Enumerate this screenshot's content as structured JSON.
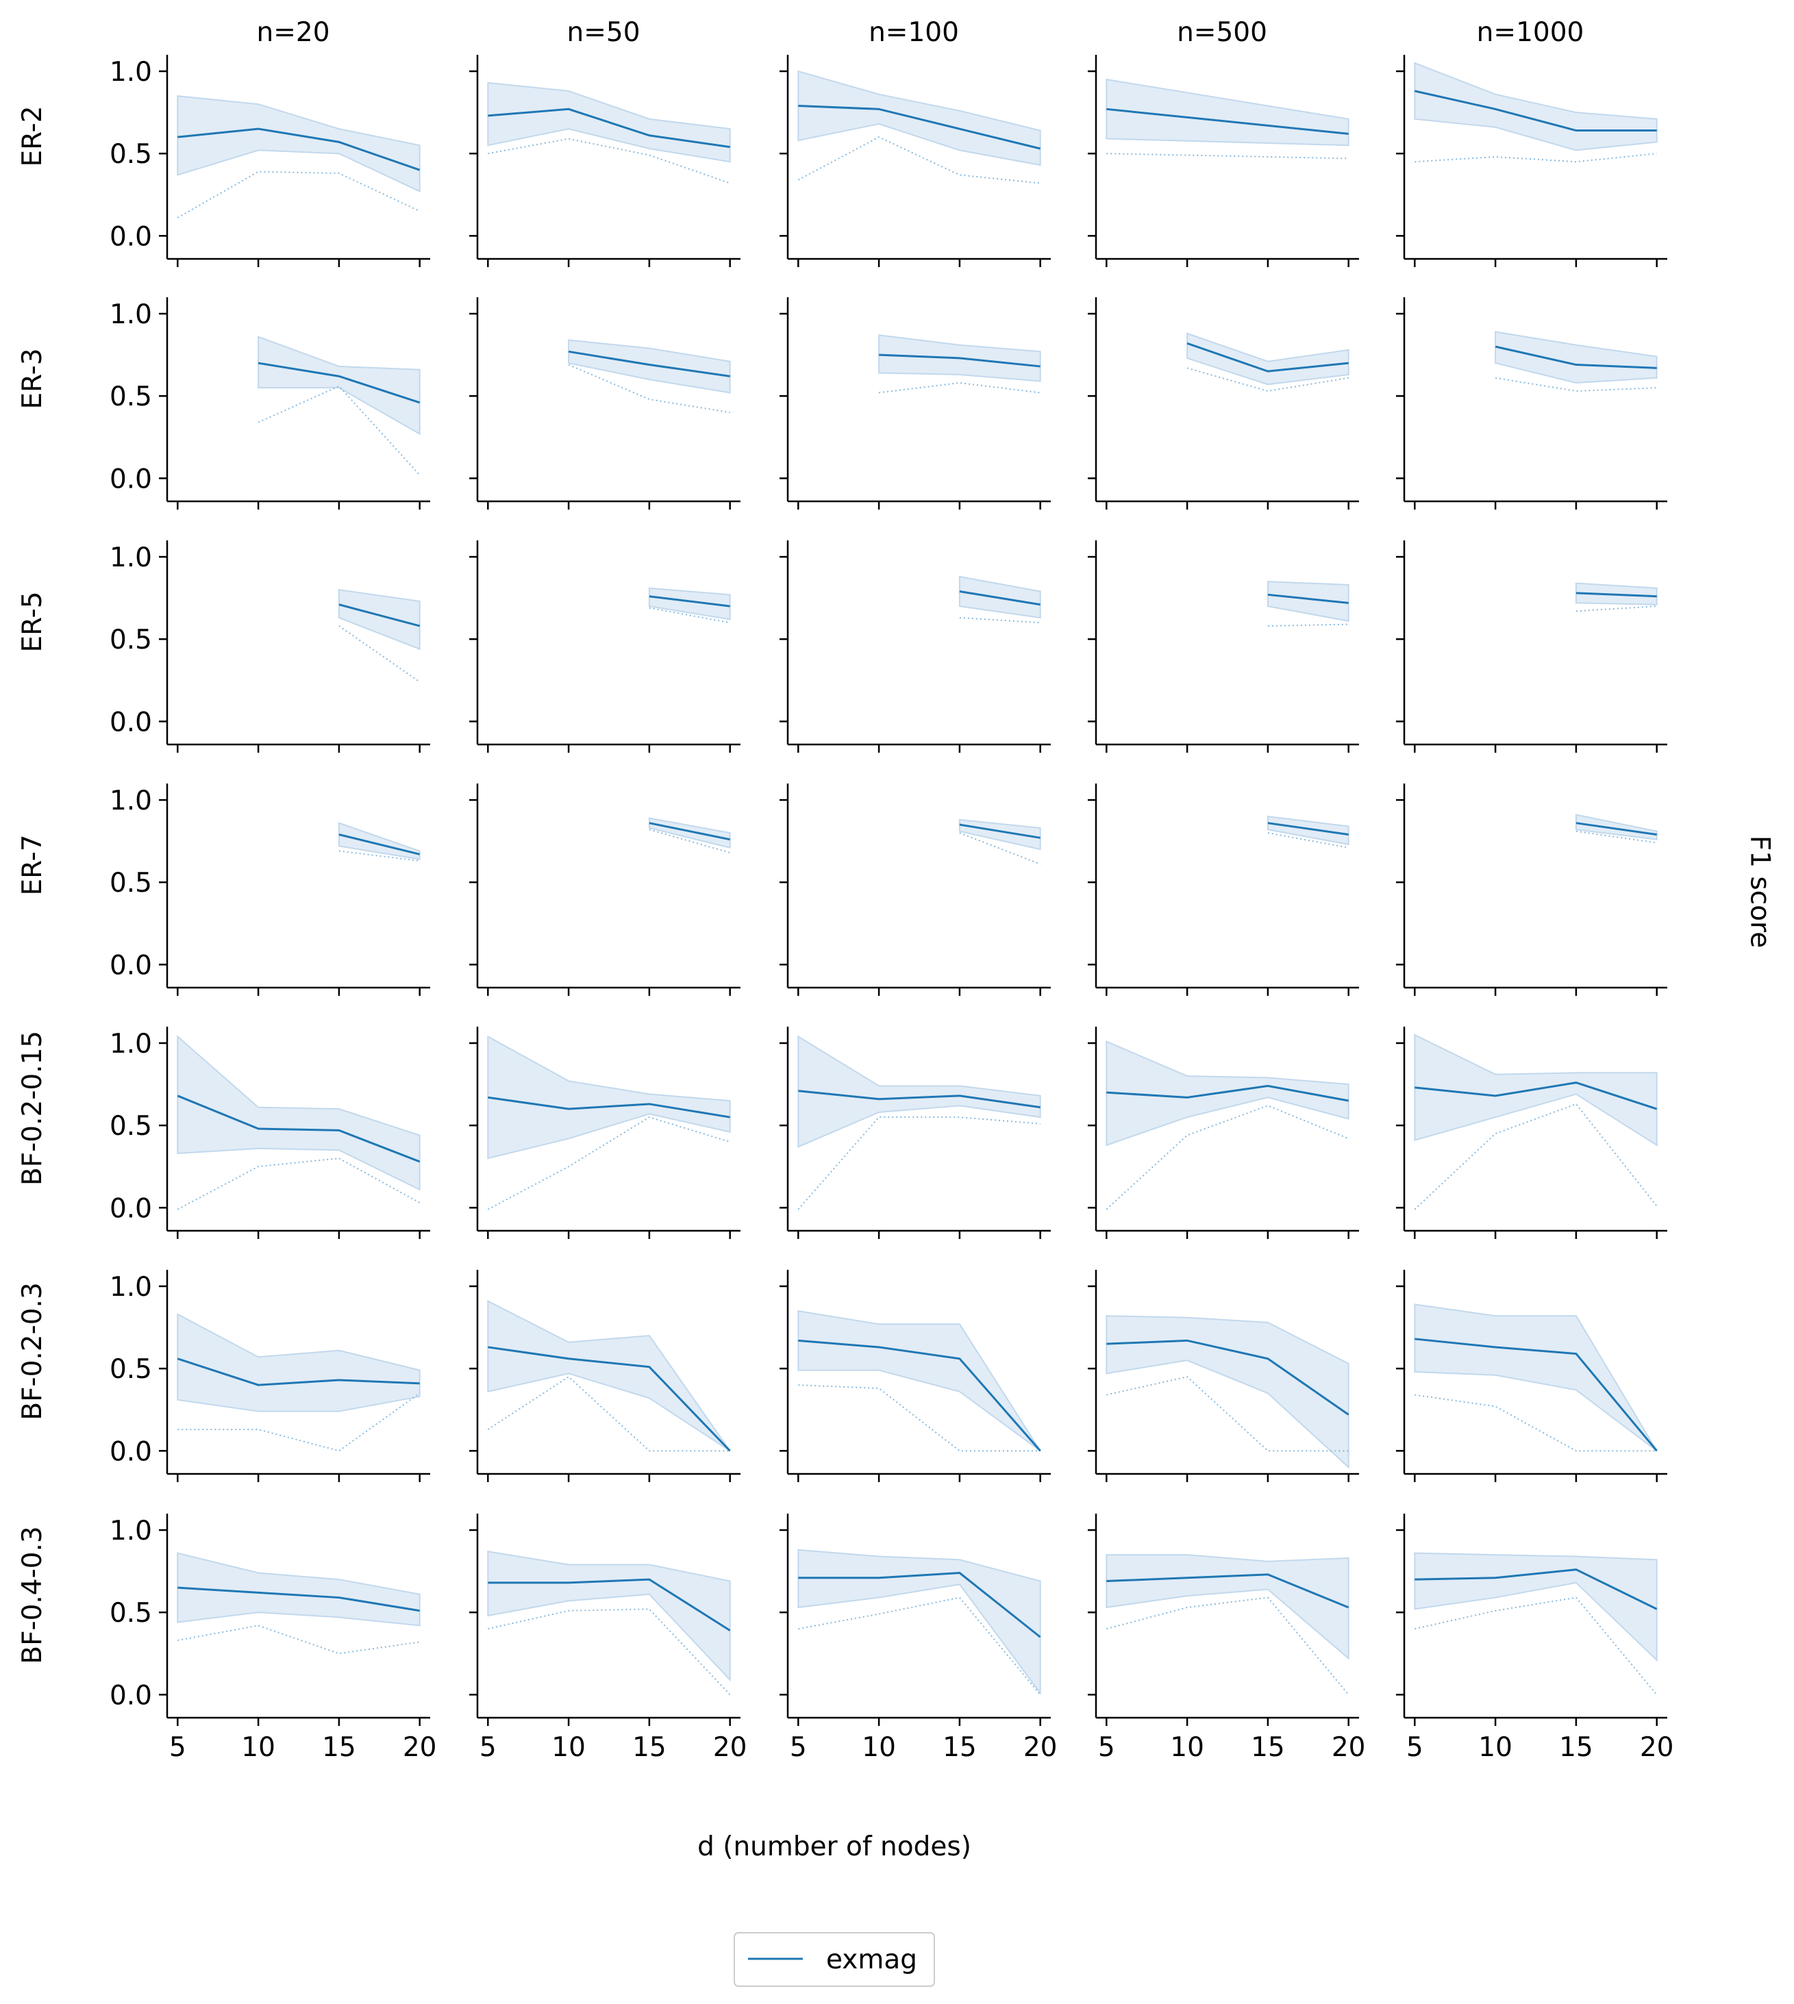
{
  "chart_data": {
    "type": "line",
    "layout": "facet-grid",
    "xlabel": "d (number of nodes)",
    "ylabel": "F1 score",
    "x": [
      5,
      10,
      15,
      20
    ],
    "xticks": [
      "5",
      "10",
      "15",
      "20"
    ],
    "yticks": [
      "0.0",
      "0.5",
      "1.0"
    ],
    "ylim": [
      -0.14,
      1.1
    ],
    "xlim": [
      4.35,
      20.65
    ],
    "legend": {
      "position": "bottom-center",
      "entries": [
        "exmag"
      ]
    },
    "colors": {
      "line": "#1f77b4",
      "band": "#dce9f5",
      "band_edge": "#b8d2ea",
      "min_line": "#86b8dc"
    },
    "columns": [
      "n=20",
      "n=50",
      "n=100",
      "n=500",
      "n=1000"
    ],
    "rows": [
      "ER-2",
      "ER-3",
      "ER-5",
      "ER-7",
      "BF-0.2-0.15",
      "BF-0.2-0.3",
      "BF-0.4-0.3"
    ],
    "series_name": "exmag",
    "panels": [
      [
        {
          "x": [
            5,
            10,
            15,
            20
          ],
          "mean": [
            0.6,
            0.65,
            0.57,
            0.4
          ],
          "lower": [
            0.37,
            0.52,
            0.5,
            0.27
          ],
          "upper": [
            0.85,
            0.8,
            0.65,
            0.55
          ],
          "min": [
            0.11,
            0.39,
            0.38,
            0.15
          ]
        },
        {
          "x": [
            5,
            10,
            15,
            20
          ],
          "mean": [
            0.73,
            0.77,
            0.61,
            0.54
          ],
          "lower": [
            0.55,
            0.65,
            0.53,
            0.45
          ],
          "upper": [
            0.93,
            0.88,
            0.71,
            0.65
          ],
          "min": [
            0.5,
            0.59,
            0.49,
            0.32
          ]
        },
        {
          "x": [
            5,
            10,
            15,
            20
          ],
          "mean": [
            0.79,
            0.77,
            0.65,
            0.53
          ],
          "lower": [
            0.58,
            0.68,
            0.52,
            0.43
          ],
          "upper": [
            1.0,
            0.86,
            0.76,
            0.64
          ],
          "min": [
            0.34,
            0.6,
            0.37,
            0.32
          ]
        },
        {
          "x": [
            5,
            20
          ],
          "mean": [
            0.77,
            0.62
          ],
          "lower": [
            0.59,
            0.55
          ],
          "upper": [
            0.95,
            0.71
          ],
          "min": [
            0.5,
            0.47
          ]
        },
        {
          "x": [
            5,
            10,
            15,
            20
          ],
          "mean": [
            0.88,
            0.77,
            0.64,
            0.64
          ],
          "lower": [
            0.71,
            0.66,
            0.52,
            0.57
          ],
          "upper": [
            1.05,
            0.86,
            0.75,
            0.71
          ],
          "min": [
            0.45,
            0.48,
            0.45,
            0.5
          ]
        }
      ],
      [
        {
          "x": [
            10,
            15,
            20
          ],
          "mean": [
            0.7,
            0.62,
            0.46
          ],
          "lower": [
            0.55,
            0.55,
            0.27
          ],
          "upper": [
            0.86,
            0.68,
            0.66
          ],
          "min": [
            0.34,
            0.56,
            0.02
          ]
        },
        {
          "x": [
            10,
            15,
            20
          ],
          "mean": [
            0.77,
            0.69,
            0.62
          ],
          "lower": [
            0.7,
            0.6,
            0.52
          ],
          "upper": [
            0.84,
            0.79,
            0.71
          ],
          "min": [
            0.69,
            0.48,
            0.4
          ]
        },
        {
          "x": [
            10,
            15,
            20
          ],
          "mean": [
            0.75,
            0.73,
            0.68
          ],
          "lower": [
            0.64,
            0.63,
            0.59
          ],
          "upper": [
            0.87,
            0.81,
            0.77
          ],
          "min": [
            0.52,
            0.58,
            0.52
          ]
        },
        {
          "x": [
            10,
            15,
            20
          ],
          "mean": [
            0.82,
            0.65,
            0.7
          ],
          "lower": [
            0.73,
            0.57,
            0.63
          ],
          "upper": [
            0.88,
            0.71,
            0.78
          ],
          "min": [
            0.67,
            0.53,
            0.61
          ]
        },
        {
          "x": [
            10,
            15,
            20
          ],
          "mean": [
            0.8,
            0.69,
            0.67
          ],
          "lower": [
            0.7,
            0.58,
            0.61
          ],
          "upper": [
            0.89,
            0.81,
            0.74
          ],
          "min": [
            0.61,
            0.53,
            0.55
          ]
        }
      ],
      [
        {
          "x": [
            15,
            20
          ],
          "mean": [
            0.71,
            0.58
          ],
          "lower": [
            0.63,
            0.44
          ],
          "upper": [
            0.8,
            0.73
          ],
          "min": [
            0.58,
            0.24
          ]
        },
        {
          "x": [
            15,
            20
          ],
          "mean": [
            0.76,
            0.7
          ],
          "lower": [
            0.7,
            0.62
          ],
          "upper": [
            0.81,
            0.77
          ],
          "min": [
            0.69,
            0.6
          ]
        },
        {
          "x": [
            15,
            20
          ],
          "mean": [
            0.79,
            0.71
          ],
          "lower": [
            0.7,
            0.63
          ],
          "upper": [
            0.88,
            0.79
          ],
          "min": [
            0.63,
            0.6
          ]
        },
        {
          "x": [
            15,
            20
          ],
          "mean": [
            0.77,
            0.72
          ],
          "lower": [
            0.7,
            0.61
          ],
          "upper": [
            0.85,
            0.83
          ],
          "min": [
            0.58,
            0.59
          ]
        },
        {
          "x": [
            15,
            20
          ],
          "mean": [
            0.78,
            0.76
          ],
          "lower": [
            0.72,
            0.71
          ],
          "upper": [
            0.84,
            0.81
          ],
          "min": [
            0.67,
            0.7
          ]
        }
      ],
      [
        {
          "x": [
            15,
            20
          ],
          "mean": [
            0.79,
            0.67
          ],
          "lower": [
            0.72,
            0.64
          ],
          "upper": [
            0.86,
            0.69
          ],
          "min": [
            0.69,
            0.63
          ]
        },
        {
          "x": [
            15,
            20
          ],
          "mean": [
            0.86,
            0.76
          ],
          "lower": [
            0.83,
            0.71
          ],
          "upper": [
            0.89,
            0.8
          ],
          "min": [
            0.82,
            0.68
          ]
        },
        {
          "x": [
            15,
            20
          ],
          "mean": [
            0.85,
            0.77
          ],
          "lower": [
            0.81,
            0.7
          ],
          "upper": [
            0.88,
            0.83
          ],
          "min": [
            0.8,
            0.61
          ]
        },
        {
          "x": [
            15,
            20
          ],
          "mean": [
            0.86,
            0.79
          ],
          "lower": [
            0.82,
            0.73
          ],
          "upper": [
            0.9,
            0.84
          ],
          "min": [
            0.8,
            0.71
          ]
        },
        {
          "x": [
            15,
            20
          ],
          "mean": [
            0.86,
            0.79
          ],
          "lower": [
            0.82,
            0.76
          ],
          "upper": [
            0.91,
            0.81
          ],
          "min": [
            0.81,
            0.74
          ]
        }
      ],
      [
        {
          "x": [
            5,
            10,
            15,
            20
          ],
          "mean": [
            0.68,
            0.48,
            0.47,
            0.28
          ],
          "lower": [
            0.33,
            0.36,
            0.35,
            0.11
          ],
          "upper": [
            1.04,
            0.61,
            0.6,
            0.44
          ],
          "min": [
            -0.01,
            0.25,
            0.3,
            0.03
          ]
        },
        {
          "x": [
            5,
            10,
            15,
            20
          ],
          "mean": [
            0.67,
            0.6,
            0.63,
            0.55
          ],
          "lower": [
            0.3,
            0.42,
            0.57,
            0.46
          ],
          "upper": [
            1.04,
            0.77,
            0.69,
            0.65
          ],
          "min": [
            -0.01,
            0.25,
            0.55,
            0.4
          ]
        },
        {
          "x": [
            5,
            10,
            15,
            20
          ],
          "mean": [
            0.71,
            0.66,
            0.68,
            0.61
          ],
          "lower": [
            0.37,
            0.58,
            0.62,
            0.55
          ],
          "upper": [
            1.04,
            0.74,
            0.74,
            0.68
          ],
          "min": [
            -0.01,
            0.55,
            0.55,
            0.51
          ]
        },
        {
          "x": [
            5,
            10,
            15,
            20
          ],
          "mean": [
            0.7,
            0.67,
            0.74,
            0.65
          ],
          "lower": [
            0.38,
            0.55,
            0.67,
            0.54
          ],
          "upper": [
            1.01,
            0.8,
            0.79,
            0.75
          ],
          "min": [
            -0.01,
            0.44,
            0.62,
            0.42
          ]
        },
        {
          "x": [
            5,
            10,
            15,
            20
          ],
          "mean": [
            0.73,
            0.68,
            0.76,
            0.6
          ],
          "lower": [
            0.41,
            0.55,
            0.69,
            0.38
          ],
          "upper": [
            1.05,
            0.81,
            0.82,
            0.82
          ],
          "min": [
            -0.01,
            0.45,
            0.63,
            0.01
          ]
        }
      ],
      [
        {
          "x": [
            5,
            10,
            15,
            20
          ],
          "mean": [
            0.56,
            0.4,
            0.43,
            0.41
          ],
          "lower": [
            0.31,
            0.24,
            0.24,
            0.33
          ],
          "upper": [
            0.83,
            0.57,
            0.61,
            0.49
          ],
          "min": [
            0.13,
            0.13,
            0.0,
            0.35
          ]
        },
        {
          "x": [
            5,
            10,
            15,
            20
          ],
          "mean": [
            0.63,
            0.56,
            0.51,
            0.0
          ],
          "lower": [
            0.36,
            0.47,
            0.32,
            0.0
          ],
          "upper": [
            0.91,
            0.66,
            0.7,
            0.0
          ],
          "min": [
            0.13,
            0.45,
            0.0,
            0.0
          ]
        },
        {
          "x": [
            5,
            10,
            15,
            20
          ],
          "mean": [
            0.67,
            0.63,
            0.56,
            0.0
          ],
          "lower": [
            0.49,
            0.49,
            0.36,
            0.0
          ],
          "upper": [
            0.85,
            0.77,
            0.77,
            0.0
          ],
          "min": [
            0.4,
            0.38,
            0.0,
            0.0
          ]
        },
        {
          "x": [
            5,
            10,
            15,
            20
          ],
          "mean": [
            0.65,
            0.67,
            0.56,
            0.22
          ],
          "lower": [
            0.47,
            0.55,
            0.35,
            -0.1
          ],
          "upper": [
            0.82,
            0.81,
            0.78,
            0.53
          ],
          "min": [
            0.34,
            0.45,
            0.0,
            0.0
          ]
        },
        {
          "x": [
            5,
            10,
            15,
            20
          ],
          "mean": [
            0.68,
            0.63,
            0.59,
            0.0
          ],
          "lower": [
            0.48,
            0.46,
            0.37,
            0.0
          ],
          "upper": [
            0.89,
            0.82,
            0.82,
            0.0
          ],
          "min": [
            0.34,
            0.27,
            0.0,
            0.0
          ]
        }
      ],
      [
        {
          "x": [
            5,
            10,
            15,
            20
          ],
          "mean": [
            0.65,
            0.62,
            0.59,
            0.51
          ],
          "lower": [
            0.44,
            0.5,
            0.47,
            0.42
          ],
          "upper": [
            0.86,
            0.74,
            0.7,
            0.61
          ],
          "min": [
            0.33,
            0.42,
            0.25,
            0.32
          ]
        },
        {
          "x": [
            5,
            10,
            15,
            20
          ],
          "mean": [
            0.68,
            0.68,
            0.7,
            0.39
          ],
          "lower": [
            0.48,
            0.57,
            0.61,
            0.09
          ],
          "upper": [
            0.87,
            0.79,
            0.79,
            0.69
          ],
          "min": [
            0.4,
            0.51,
            0.52,
            0.0
          ]
        },
        {
          "x": [
            5,
            10,
            15,
            20
          ],
          "mean": [
            0.71,
            0.71,
            0.74,
            0.35
          ],
          "lower": [
            0.53,
            0.59,
            0.67,
            0.01
          ],
          "upper": [
            0.88,
            0.84,
            0.82,
            0.69
          ],
          "min": [
            0.4,
            0.49,
            0.59,
            0.0
          ]
        },
        {
          "x": [
            5,
            10,
            15,
            20
          ],
          "mean": [
            0.69,
            0.71,
            0.73,
            0.53
          ],
          "lower": [
            0.53,
            0.6,
            0.64,
            0.22
          ],
          "upper": [
            0.85,
            0.85,
            0.81,
            0.83
          ],
          "min": [
            0.4,
            0.53,
            0.59,
            0.0
          ]
        },
        {
          "x": [
            5,
            10,
            15,
            20
          ],
          "mean": [
            0.7,
            0.71,
            0.76,
            0.52
          ],
          "lower": [
            0.52,
            0.59,
            0.68,
            0.21
          ],
          "upper": [
            0.86,
            0.85,
            0.84,
            0.82
          ],
          "min": [
            0.4,
            0.51,
            0.59,
            0.0
          ]
        }
      ]
    ]
  }
}
